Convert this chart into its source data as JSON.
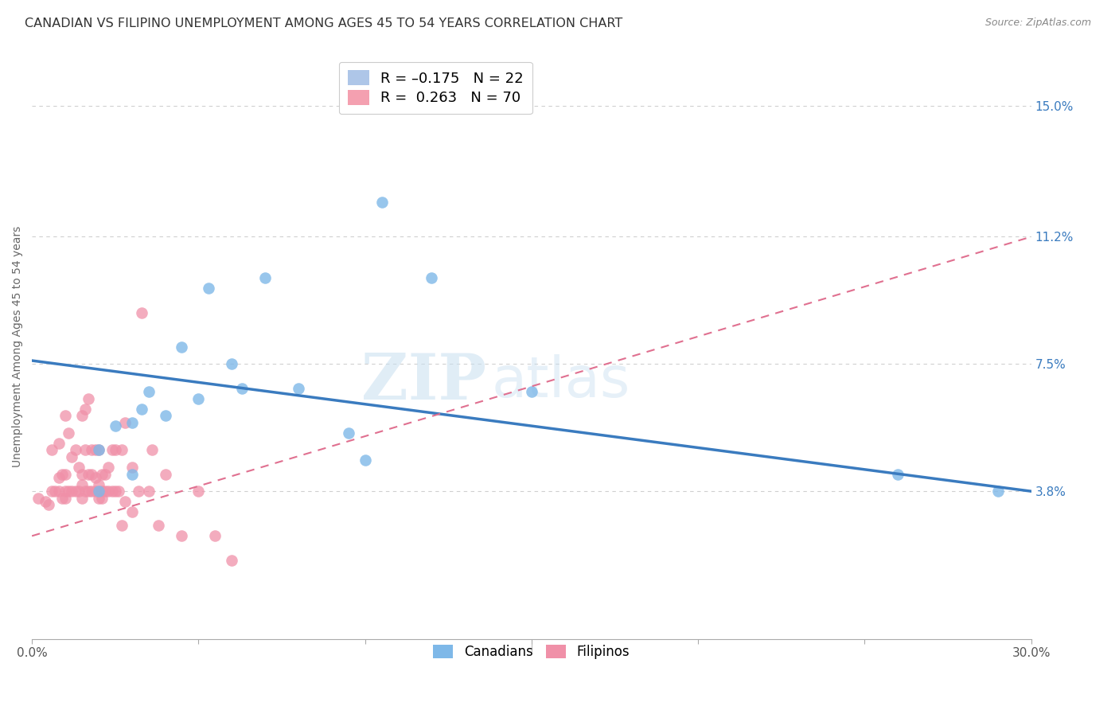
{
  "title": "CANADIAN VS FILIPINO UNEMPLOYMENT AMONG AGES 45 TO 54 YEARS CORRELATION CHART",
  "source": "Source: ZipAtlas.com",
  "ylabel": "Unemployment Among Ages 45 to 54 years",
  "xlim": [
    0.0,
    0.3
  ],
  "ylim": [
    -0.005,
    0.165
  ],
  "ytick_right_vals": [
    0.038,
    0.075,
    0.112,
    0.15
  ],
  "ytick_right_labels": [
    "3.8%",
    "7.5%",
    "11.2%",
    "15.0%"
  ],
  "legend_items": [
    {
      "label": "R = –0.175   N = 22",
      "color": "#aec6e8"
    },
    {
      "label": "R =  0.263   N = 70",
      "color": "#f4a0b0"
    }
  ],
  "canadian_color": "#7eb8e8",
  "filipino_color": "#f090a8",
  "canadian_x": [
    0.02,
    0.02,
    0.025,
    0.03,
    0.03,
    0.033,
    0.035,
    0.04,
    0.045,
    0.05,
    0.053,
    0.06,
    0.063,
    0.07,
    0.08,
    0.095,
    0.1,
    0.105,
    0.12,
    0.15,
    0.26,
    0.29
  ],
  "canadian_y": [
    0.038,
    0.05,
    0.057,
    0.043,
    0.058,
    0.062,
    0.067,
    0.06,
    0.08,
    0.065,
    0.097,
    0.075,
    0.068,
    0.1,
    0.068,
    0.055,
    0.047,
    0.122,
    0.1,
    0.067,
    0.043,
    0.038
  ],
  "filipino_x": [
    0.002,
    0.004,
    0.005,
    0.006,
    0.006,
    0.007,
    0.008,
    0.008,
    0.008,
    0.009,
    0.009,
    0.01,
    0.01,
    0.01,
    0.01,
    0.011,
    0.011,
    0.012,
    0.012,
    0.013,
    0.013,
    0.014,
    0.014,
    0.015,
    0.015,
    0.015,
    0.015,
    0.016,
    0.016,
    0.016,
    0.017,
    0.017,
    0.017,
    0.018,
    0.018,
    0.018,
    0.019,
    0.019,
    0.019,
    0.02,
    0.02,
    0.02,
    0.021,
    0.021,
    0.021,
    0.022,
    0.022,
    0.023,
    0.023,
    0.024,
    0.024,
    0.025,
    0.025,
    0.026,
    0.027,
    0.027,
    0.028,
    0.028,
    0.03,
    0.03,
    0.032,
    0.033,
    0.035,
    0.036,
    0.038,
    0.04,
    0.045,
    0.05,
    0.055,
    0.06
  ],
  "filipino_y": [
    0.036,
    0.035,
    0.034,
    0.038,
    0.05,
    0.038,
    0.038,
    0.042,
    0.052,
    0.036,
    0.043,
    0.036,
    0.038,
    0.043,
    0.06,
    0.038,
    0.055,
    0.038,
    0.048,
    0.038,
    0.05,
    0.038,
    0.045,
    0.036,
    0.04,
    0.043,
    0.06,
    0.038,
    0.05,
    0.062,
    0.038,
    0.043,
    0.065,
    0.038,
    0.043,
    0.05,
    0.038,
    0.042,
    0.05,
    0.036,
    0.04,
    0.05,
    0.036,
    0.038,
    0.043,
    0.038,
    0.043,
    0.038,
    0.045,
    0.038,
    0.05,
    0.038,
    0.05,
    0.038,
    0.028,
    0.05,
    0.035,
    0.058,
    0.032,
    0.045,
    0.038,
    0.09,
    0.038,
    0.05,
    0.028,
    0.043,
    0.025,
    0.038,
    0.025,
    0.018
  ],
  "canadian_trend_x": [
    0.0,
    0.3
  ],
  "canadian_trend_y": [
    0.076,
    0.038
  ],
  "filipino_trend_x": [
    0.0,
    0.3
  ],
  "filipino_trend_y": [
    0.025,
    0.112
  ],
  "background_color": "#ffffff",
  "grid_color": "#d0d0d0",
  "watermark_zip": "ZIP",
  "watermark_atlas": "atlas",
  "title_fontsize": 11.5,
  "axis_label_fontsize": 10,
  "tick_fontsize": 11
}
